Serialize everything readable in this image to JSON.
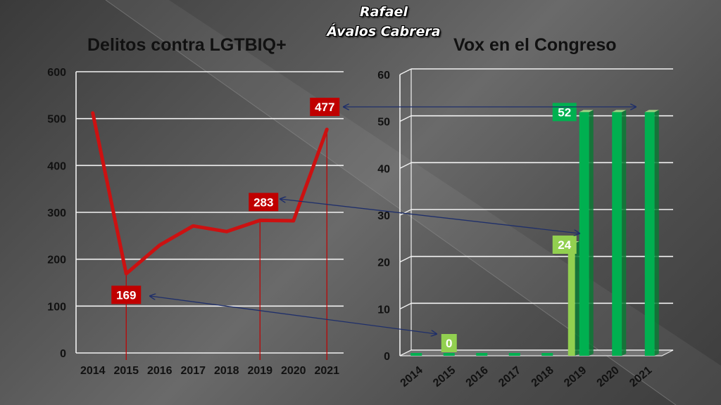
{
  "author": {
    "line1": "Rafael",
    "line2": "Ávalos Cabrera"
  },
  "colors": {
    "line": "#cc1111",
    "label_red": "#c00000",
    "bar_dark": "#00b050",
    "bar_light": "#92d050",
    "arrow": "#1f2f6a",
    "grid": "#f2f2f2"
  },
  "chart_data": [
    {
      "type": "line",
      "title": "Delitos contra LGTBIQ+",
      "x": [
        "2014",
        "2015",
        "2016",
        "2017",
        "2018",
        "2019",
        "2020",
        "2021"
      ],
      "series": [
        {
          "values": [
            512,
            169,
            230,
            271,
            259,
            283,
            282,
            477
          ]
        }
      ],
      "ylim": [
        0,
        600
      ],
      "yticks": [
        0,
        100,
        200,
        300,
        400,
        500,
        600
      ],
      "grid": true,
      "data_labels": [
        {
          "year": "2015",
          "text": "169"
        },
        {
          "year": "2019",
          "text": "283"
        },
        {
          "year": "2021",
          "text": "477"
        }
      ]
    },
    {
      "type": "bar",
      "title": "Vox en el Congreso",
      "categories": [
        "2014",
        "2015",
        "2016",
        "2017",
        "2018",
        "2019",
        "2020",
        "2021"
      ],
      "series": [
        {
          "values": [
            0,
            0,
            0,
            0,
            0,
            24,
            0,
            0
          ],
          "color": "#92d050"
        },
        {
          "values": [
            0,
            0,
            0,
            0,
            0,
            52,
            52,
            52
          ],
          "color": "#00b050"
        }
      ],
      "ylim": [
        0,
        60
      ],
      "yticks": [
        0,
        10,
        20,
        30,
        40,
        50,
        60
      ],
      "grid": true,
      "data_labels": [
        {
          "year": "2015",
          "text": "0"
        },
        {
          "year": "2019",
          "text": "24"
        },
        {
          "year": "2019",
          "text": "52"
        }
      ]
    }
  ]
}
